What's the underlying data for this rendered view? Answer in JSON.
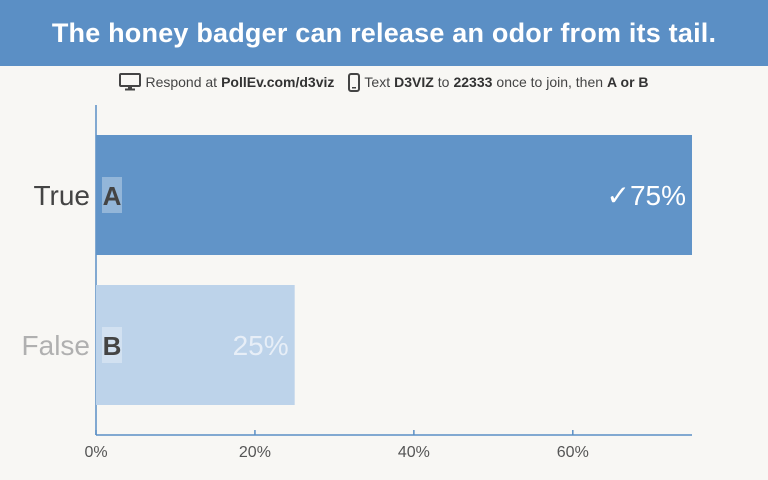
{
  "title": "The honey badger can release an odor from its tail.",
  "instructions": {
    "respond_prefix": "Respond at",
    "respond_url": "PollEv.com/d3viz",
    "text_prefix": "Text",
    "code": "D3VIZ",
    "to": "to",
    "number": "22333",
    "join_text": "once to join, then",
    "options": "A or B",
    "web_icon": "monitor-icon",
    "sms_icon": "phone-icon"
  },
  "colors": {
    "header": "#5b8fc5",
    "correct_bar": "#6194c8",
    "other_bar": "#bdd3ea",
    "axis": "#5b8fc5",
    "correct_text": "#444444",
    "other_text": "#b0b0b0"
  },
  "chart_data": {
    "type": "bar",
    "orientation": "horizontal",
    "categories": [
      "True",
      "False"
    ],
    "letters": [
      "A",
      "B"
    ],
    "values": [
      75,
      25
    ],
    "value_labels": [
      "75%",
      "25%"
    ],
    "correct_index": 0,
    "correct_mark": "✓",
    "xlim": [
      0,
      75
    ],
    "xticks": [
      0,
      20,
      40,
      60
    ],
    "xtick_labels": [
      "0%",
      "20%",
      "40%",
      "60%"
    ],
    "title": "The honey badger can release an odor from its tail.",
    "xlabel": "",
    "ylabel": "",
    "grid": false
  }
}
